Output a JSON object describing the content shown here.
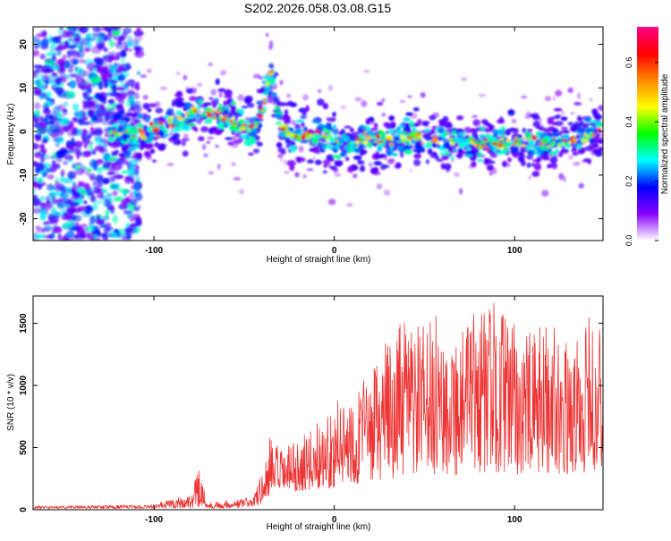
{
  "chart_data": [
    {
      "type": "heatmap",
      "title": "S202.2026.058.03.08.G15",
      "xlabel": "Height of straight line (km)",
      "ylabel": "Frequency (Hz)",
      "xlim": [
        -167,
        149
      ],
      "ylim": [
        -25,
        24
      ],
      "x_ticks": [
        -100,
        0,
        100
      ],
      "y_ticks": [
        -20,
        -10,
        0,
        10,
        20
      ],
      "colorbar": {
        "label": "Normalized spectral amplitude",
        "range": [
          0.0,
          0.72
        ],
        "ticks": [
          0.0,
          0.2,
          0.4,
          0.6
        ],
        "tick_labels": [
          "0.0",
          "0.2",
          "0.4",
          "0.6"
        ],
        "colors": [
          "#ffffff",
          "#8800ff",
          "#0000ff",
          "#00ffff",
          "#00ff00",
          "#ffff00",
          "#ff8800",
          "#ff0000",
          "#ff0088"
        ]
      },
      "trace": {
        "description": "dominant frequency track vs height",
        "x": [
          -125,
          -110,
          -95,
          -85,
          -75,
          -65,
          -55,
          -45,
          -40,
          -38,
          -35,
          -30,
          -20,
          -10,
          0,
          10,
          20,
          30,
          40,
          60,
          80,
          100,
          120,
          140,
          148
        ],
        "y": [
          0,
          -1,
          1,
          3,
          5,
          4,
          2,
          0,
          5,
          9,
          14,
          1,
          -1,
          -1,
          -2,
          -3,
          -1,
          -2,
          -1,
          -2,
          -3,
          -2,
          -3,
          -1,
          1
        ]
      },
      "noise_region_x": [
        -167,
        -108
      ]
    },
    {
      "type": "line",
      "xlabel": "Height of straight line (km)",
      "ylabel": "SNR (10 * v/v)",
      "xlim": [
        -167,
        149
      ],
      "ylim": [
        0,
        1720
      ],
      "x_ticks": [
        -100,
        0,
        100
      ],
      "y_ticks": [
        0,
        500,
        1000,
        1500
      ],
      "series": [
        {
          "name": "SNR",
          "color": "#ee3333",
          "envelope_x": [
            -167,
            -130,
            -100,
            -90,
            -80,
            -75,
            -70,
            -60,
            -50,
            -45,
            -40,
            -36,
            -30,
            -20,
            -10,
            0,
            10,
            20,
            30,
            40,
            50,
            60,
            70,
            80,
            90,
            100,
            110,
            120,
            130,
            140,
            149
          ],
          "envelope_y": [
            30,
            35,
            40,
            100,
            120,
            320,
            60,
            80,
            90,
            130,
            300,
            600,
            500,
            550,
            700,
            850,
            1000,
            1100,
            1400,
            1550,
            1500,
            1600,
            1480,
            1650,
            1700,
            1500,
            1420,
            1600,
            1300,
            1560,
            1500
          ],
          "baseline_y": [
            10,
            10,
            10,
            12,
            12,
            12,
            10,
            12,
            15,
            20,
            40,
            90,
            120,
            150,
            160,
            180,
            200,
            220,
            250,
            260,
            270,
            280,
            270,
            290,
            300,
            280,
            270,
            300,
            280,
            290,
            300
          ]
        }
      ]
    }
  ]
}
